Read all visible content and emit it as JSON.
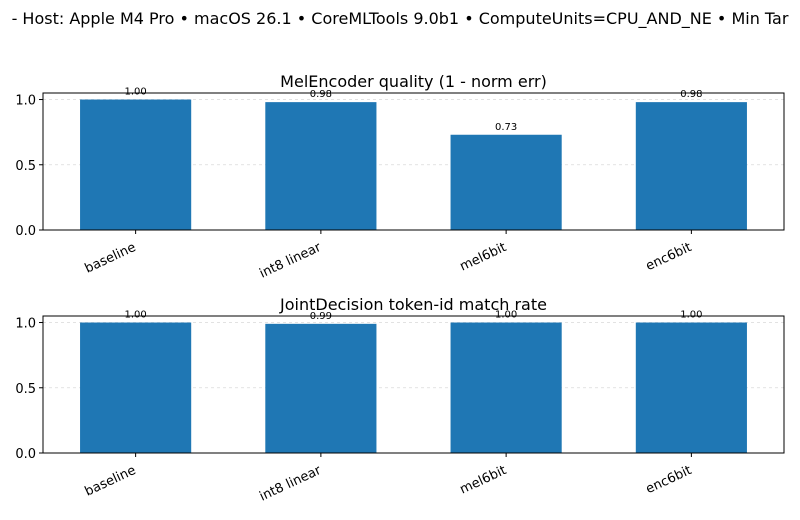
{
  "figure": {
    "suptitle": "- Host: Apple M4 Pro • macOS 26.1 • CoreMLTools 9.0b1 • ComputeUnits=CPU_AND_NE • Min Tar"
  },
  "chart_data": [
    {
      "type": "bar",
      "title": "MelEncoder quality (1 - norm err)",
      "categories": [
        "baseline",
        "int8 linear",
        "mel6bit",
        "enc6bit"
      ],
      "values": [
        1.0,
        0.98,
        0.73,
        0.98
      ],
      "data_labels": [
        "1.00",
        "0.98",
        "0.73",
        "0.98"
      ],
      "yticks": [
        "0.0",
        "0.5",
        "1.0"
      ],
      "ylim": [
        0,
        1.05
      ],
      "grid": "horizontal dashed",
      "bar_color": "#1f77b4"
    },
    {
      "type": "bar",
      "title": "JointDecision token-id match rate",
      "categories": [
        "baseline",
        "int8 linear",
        "mel6bit",
        "enc6bit"
      ],
      "values": [
        1.0,
        0.99,
        1.0,
        1.0
      ],
      "data_labels": [
        "1.00",
        "0.99",
        "1.00",
        "1.00"
      ],
      "yticks": [
        "0.0",
        "0.5",
        "1.0"
      ],
      "ylim": [
        0,
        1.05
      ],
      "grid": "horizontal dashed",
      "bar_color": "#1f77b4"
    }
  ]
}
